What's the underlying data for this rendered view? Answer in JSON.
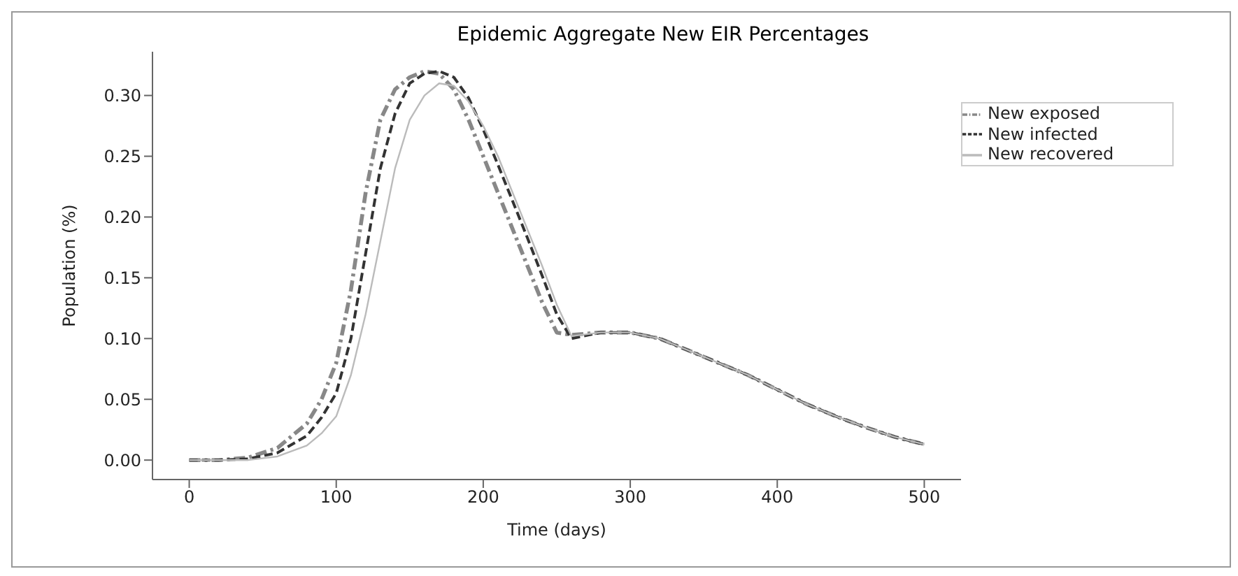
{
  "chart_data": {
    "type": "line",
    "title": "Epidemic Aggregate New EIR Percentages",
    "xlabel": "Time (days)",
    "ylabel": "Population (%)",
    "xlim": [
      -25,
      525
    ],
    "ylim": [
      -0.016,
      0.336
    ],
    "xticks": [
      0,
      100,
      200,
      300,
      400,
      500
    ],
    "yticks": [
      {
        "value": 0,
        "label": "0.00"
      },
      {
        "value": 0.05,
        "label": "0.05"
      },
      {
        "value": 0.1,
        "label": "0.10"
      },
      {
        "value": 0.15,
        "label": "0.15"
      },
      {
        "value": 0.2,
        "label": "0.20"
      },
      {
        "value": 0.25,
        "label": "0.25"
      },
      {
        "value": 0.3,
        "label": "0.30"
      }
    ],
    "grid": false,
    "legend": "top right",
    "marker": "none",
    "series": [
      {
        "name": "New exposed",
        "color": "#888888",
        "line_style": "dashdot",
        "x": [
          0,
          20,
          40,
          60,
          80,
          90,
          100,
          110,
          120,
          130,
          140,
          150,
          160,
          170,
          180,
          190,
          200,
          210,
          220,
          230,
          240,
          250,
          260,
          280,
          300,
          320,
          340,
          360,
          380,
          400,
          420,
          440,
          460,
          480,
          500
        ],
        "values": [
          0.0,
          0.0,
          0.002,
          0.01,
          0.03,
          0.05,
          0.08,
          0.14,
          0.22,
          0.28,
          0.305,
          0.315,
          0.32,
          0.318,
          0.305,
          0.28,
          0.25,
          0.22,
          0.19,
          0.16,
          0.13,
          0.105,
          0.103,
          0.105,
          0.105,
          0.1,
          0.09,
          0.08,
          0.07,
          0.058,
          0.046,
          0.036,
          0.027,
          0.019,
          0.013
        ]
      },
      {
        "name": "New infected",
        "color": "#333333",
        "line_style": "dashed",
        "x": [
          0,
          20,
          40,
          60,
          80,
          90,
          100,
          110,
          120,
          130,
          140,
          150,
          160,
          170,
          180,
          190,
          200,
          210,
          220,
          230,
          240,
          250,
          260,
          280,
          300,
          320,
          340,
          360,
          380,
          400,
          420,
          440,
          460,
          480,
          500
        ],
        "values": [
          0.0,
          0.0,
          0.001,
          0.006,
          0.02,
          0.035,
          0.055,
          0.1,
          0.17,
          0.24,
          0.285,
          0.31,
          0.318,
          0.32,
          0.315,
          0.298,
          0.272,
          0.243,
          0.213,
          0.183,
          0.152,
          0.12,
          0.1,
          0.105,
          0.105,
          0.1,
          0.09,
          0.08,
          0.07,
          0.058,
          0.046,
          0.036,
          0.027,
          0.019,
          0.013
        ]
      },
      {
        "name": "New recovered",
        "color": "#bbbbbb",
        "line_style": "solid",
        "x": [
          0,
          20,
          40,
          60,
          80,
          90,
          100,
          110,
          120,
          130,
          140,
          150,
          160,
          170,
          180,
          190,
          200,
          210,
          220,
          230,
          240,
          250,
          260,
          280,
          300,
          320,
          340,
          360,
          380,
          400,
          420,
          440,
          460,
          480,
          500
        ],
        "values": [
          0.0,
          0.0,
          0.0,
          0.003,
          0.012,
          0.022,
          0.036,
          0.07,
          0.12,
          0.18,
          0.24,
          0.28,
          0.3,
          0.31,
          0.308,
          0.295,
          0.275,
          0.25,
          0.22,
          0.19,
          0.16,
          0.128,
          0.102,
          0.105,
          0.105,
          0.1,
          0.09,
          0.08,
          0.07,
          0.058,
          0.046,
          0.036,
          0.027,
          0.019,
          0.013
        ]
      }
    ]
  }
}
